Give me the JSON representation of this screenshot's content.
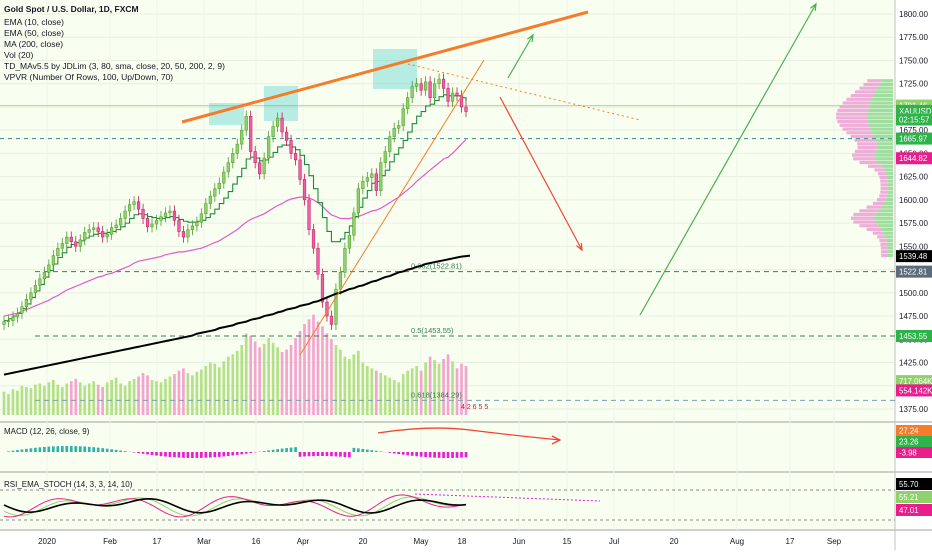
{
  "legend": [
    "Gold Spot / U.S. Dollar, 1D, FXCM",
    "EMA (10, close)",
    "EMA (50, close)",
    "MA (200, close)",
    "Vol (20)",
    "TD_MAv5.5 by JDLim (3, 80, sma, close, 20, 50, 200, 2, 9)",
    "VPVR (Number Of Rows, 100, Up/Down, 70)"
  ],
  "macd_label": "MACD (12, 26, close, 9)",
  "rsi_label": "RSI_EMA_STOCH (14, 3, 3, 14, 10)",
  "colors": {
    "up": "#8fd16a",
    "down": "#ef5fa8",
    "accent": "#f57c2a",
    "black_ma": "#000000",
    "ema50": "#e05ad0",
    "green_arrow": "#4caf50",
    "red_arrow": "#f44336",
    "box": "#3cc8c8",
    "vol_up": "#b5e08a",
    "vol_down": "#f3a5d0",
    "bg": "#f8fff0"
  },
  "price_axis": {
    "ticks": [
      "1800.00",
      "1775.00",
      "1750.00",
      "1725.00",
      "1700.00",
      "1675.00",
      "1650.00",
      "1625.00",
      "1600.00",
      "1575.00",
      "1550.00",
      "1525.00",
      "1500.00",
      "1475.00",
      "1450.00",
      "1425.00",
      "1400.00",
      "1375.00"
    ],
    "badges": [
      {
        "text": "1701.46",
        "color": "#8fd16a",
        "price": 1701.46
      },
      {
        "text": "XAUUSD · 1695.71",
        "color": "#2fb24a",
        "price": 1695.71
      },
      {
        "text": "02:15:57",
        "color": "#2fb24a",
        "price": 1686.5
      },
      {
        "text": "1665.97",
        "color": "#2fb24a",
        "price": 1665.97
      },
      {
        "text": "1644.82",
        "color": "#e91e8c",
        "price": 1644.82
      },
      {
        "text": "1539.48",
        "color": "#000000",
        "price": 1539.48
      },
      {
        "text": "1522.81",
        "color": "#5b6b7a",
        "price": 1522.81
      },
      {
        "text": "1453.55",
        "color": "#2fb24a",
        "price": 1453.55
      },
      {
        "text": "717.064K",
        "color": "#8fd16a",
        "price": 1405
      },
      {
        "text": "554.142K",
        "color": "#e91e8c",
        "price": 1395
      }
    ]
  },
  "time_axis": [
    "2020",
    "Feb",
    "17",
    "Mar",
    "16",
    "Apr",
    "20",
    "May",
    "18",
    "Jun",
    "15",
    "Jul",
    "20",
    "Aug",
    "17",
    "Sep"
  ],
  "fib_labels": [
    {
      "text": "0.382(1522.81)",
      "price": 1522.81
    },
    {
      "text": "0.5(1453.55)",
      "price": 1453.55
    },
    {
      "text": "0.618(1384.29)",
      "price": 1384.29
    }
  ],
  "td_count": "4 2 6 5 5",
  "macd_badges": [
    {
      "text": "27.24",
      "color": "#f57c2a"
    },
    {
      "text": "23.26",
      "color": "#2fb24a"
    },
    {
      "text": "-3.98",
      "color": "#e91e8c"
    }
  ],
  "rsi_badges": [
    {
      "text": "55.70",
      "color": "#000000"
    },
    {
      "text": "55.21",
      "color": "#8fd16a"
    },
    {
      "text": "47.01",
      "color": "#e91e8c"
    }
  ],
  "chart_data": {
    "type": "candlestick",
    "title": "Gold Spot / U.S. Dollar, 1D, FXCM",
    "ylim": [
      1365,
      1810
    ],
    "close_series": [
      1469,
      1470,
      1474,
      1478,
      1485,
      1493,
      1500,
      1508,
      1515,
      1522,
      1530,
      1540,
      1548,
      1553,
      1560,
      1555,
      1550,
      1557,
      1565,
      1568,
      1570,
      1566,
      1560,
      1563,
      1570,
      1573,
      1580,
      1588,
      1595,
      1598,
      1590,
      1580,
      1571,
      1574,
      1578,
      1582,
      1586,
      1588,
      1578,
      1566,
      1560,
      1568,
      1572,
      1576,
      1585,
      1596,
      1604,
      1612,
      1618,
      1630,
      1640,
      1650,
      1660,
      1675,
      1690,
      1652,
      1640,
      1628,
      1645,
      1668,
      1679,
      1688,
      1673,
      1664,
      1650,
      1643,
      1622,
      1600,
      1568,
      1548,
      1520,
      1490,
      1475,
      1466,
      1504,
      1522,
      1548,
      1562,
      1586,
      1612,
      1620,
      1624,
      1628,
      1610,
      1640,
      1652,
      1668,
      1677,
      1680,
      1698,
      1710,
      1722,
      1725,
      1718,
      1727,
      1710,
      1725,
      1730,
      1720,
      1706,
      1715,
      1712,
      1700,
      1695
    ],
    "ema10": [
      1470,
      1472,
      1475,
      1478,
      1483,
      1488,
      1495,
      1502,
      1509,
      1517,
      1524,
      1531,
      1538,
      1543,
      1549,
      1552,
      1554,
      1556,
      1559,
      1561,
      1563,
      1564,
      1564,
      1565,
      1566,
      1568,
      1571,
      1575,
      1580,
      1584,
      1585,
      1584,
      1582,
      1581,
      1580,
      1580,
      1581,
      1582,
      1581,
      1579,
      1577,
      1576,
      1576,
      1577,
      1578,
      1581,
      1585,
      1590,
      1596,
      1602,
      1609,
      1617,
      1625,
      1634,
      1644,
      1646,
      1645,
      1642,
      1643,
      1646,
      1651,
      1657,
      1659,
      1659,
      1657,
      1654,
      1648,
      1638,
      1626,
      1612,
      1597,
      1581,
      1566,
      1555,
      1555,
      1558,
      1565,
      1572,
      1582,
      1592,
      1602,
      1610,
      1618,
      1620,
      1626,
      1632,
      1641,
      1649,
      1656,
      1664,
      1673,
      1682,
      1690,
      1695,
      1701,
      1703,
      1707,
      1711,
      1713,
      1712,
      1712,
      1712,
      1710,
      1706
    ],
    "ema50": [
      1475,
      1476,
      1477,
      1478,
      1480,
      1482,
      1484,
      1486,
      1488,
      1490,
      1492,
      1495,
      1497,
      1500,
      1503,
      1505,
      1507,
      1509,
      1511,
      1513,
      1515,
      1517,
      1518,
      1520,
      1521,
      1523,
      1525,
      1527,
      1529,
      1532,
      1534,
      1535,
      1536,
      1537,
      1538,
      1539,
      1541,
      1542,
      1543,
      1544,
      1544,
      1545,
      1546,
      1547,
      1548,
      1550,
      1552,
      1554,
      1556,
      1559,
      1562,
      1565,
      1568,
      1572,
      1576,
      1579,
      1581,
      1583,
      1585,
      1588,
      1591,
      1594,
      1596,
      1599,
      1601,
      1602,
      1603,
      1603,
      1602,
      1600,
      1597,
      1593,
      1588,
      1584,
      1582,
      1580,
      1580,
      1580,
      1581,
      1582,
      1584,
      1586,
      1588,
      1589,
      1591,
      1594,
      1597,
      1600,
      1603,
      1607,
      1611,
      1615,
      1620,
      1624,
      1628,
      1632,
      1636,
      1640,
      1644,
      1646,
      1650,
      1655,
      1660,
      1665
    ],
    "ma200": [
      1412,
      1413,
      1414,
      1415,
      1416,
      1417,
      1418,
      1419,
      1420,
      1421,
      1422,
      1423,
      1424,
      1425,
      1426,
      1427,
      1428,
      1429,
      1430,
      1431,
      1432,
      1433,
      1434,
      1435,
      1436,
      1437,
      1438,
      1439,
      1440,
      1441,
      1442,
      1443,
      1444,
      1445,
      1446,
      1447,
      1448,
      1449,
      1450,
      1451,
      1452,
      1453,
      1454,
      1456,
      1457,
      1458,
      1459,
      1460,
      1462,
      1463,
      1464,
      1465,
      1467,
      1468,
      1469,
      1471,
      1472,
      1473,
      1475,
      1476,
      1477,
      1479,
      1480,
      1482,
      1483,
      1484,
      1486,
      1487,
      1488,
      1490,
      1491,
      1493,
      1495,
      1497,
      1499,
      1500,
      1502,
      1504,
      1505,
      1507,
      1508,
      1510,
      1512,
      1513,
      1515,
      1517,
      1518,
      1520,
      1522,
      1523,
      1525,
      1526,
      1528,
      1529,
      1531,
      1532,
      1533,
      1534,
      1535,
      1536,
      1537,
      1538,
      1539,
      1539.48
    ],
    "volume": [
      20,
      18,
      22,
      21,
      25,
      24,
      23,
      26,
      27,
      25,
      28,
      30,
      26,
      24,
      27,
      29,
      31,
      28,
      25,
      27,
      29,
      26,
      24,
      28,
      30,
      32,
      27,
      25,
      29,
      31,
      33,
      36,
      34,
      30,
      29,
      28,
      31,
      33,
      35,
      38,
      40,
      36,
      34,
      37,
      39,
      42,
      45,
      44,
      41,
      46,
      50,
      52,
      55,
      60,
      70,
      68,
      63,
      58,
      61,
      66,
      62,
      58,
      54,
      56,
      60,
      66,
      72,
      78,
      82,
      86,
      80,
      76,
      70,
      65,
      60,
      56,
      50,
      48,
      52,
      55,
      45,
      42,
      40,
      38,
      36,
      34,
      32,
      30,
      28,
      35,
      38,
      40,
      42,
      38,
      45,
      50,
      47,
      44,
      48,
      52,
      46,
      40,
      44,
      42
    ]
  }
}
